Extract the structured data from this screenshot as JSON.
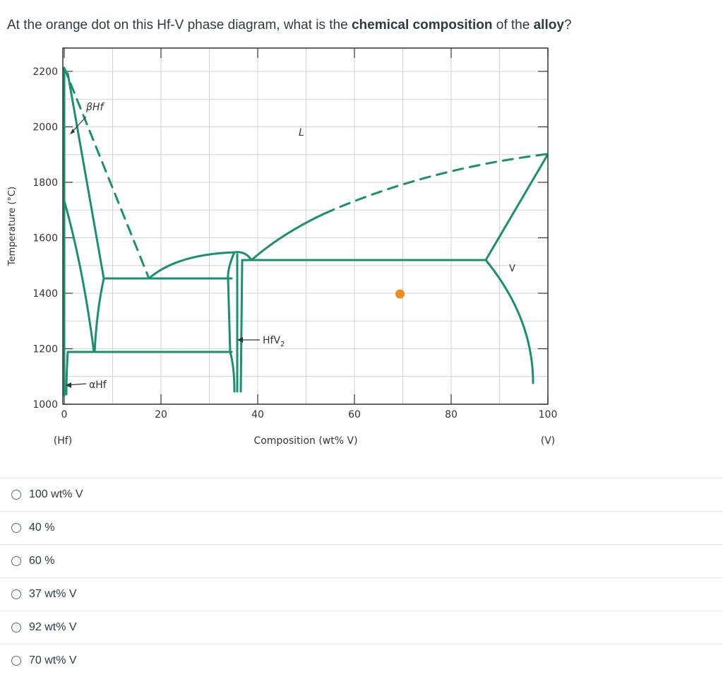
{
  "question": {
    "part1": "At the orange dot on this Hf-V phase diagram, what is the ",
    "bold1": "chemical composition",
    "part2": " of the ",
    "bold2": "alloy",
    "part3": "?"
  },
  "diagram": {
    "ylabel": "Temperature (°C)",
    "xlabel": "Composition (wt% V)",
    "x_end_left": "(Hf)",
    "x_end_right": "(V)",
    "x_ticks": [
      "0",
      "20",
      "40",
      "60",
      "80",
      "100"
    ],
    "y_ticks": [
      "1000",
      "1200",
      "1400",
      "1600",
      "1800",
      "2000",
      "2200"
    ],
    "xlim": [
      0,
      100
    ],
    "ylim": [
      1000,
      2250
    ],
    "labels": {
      "beta": "βHf",
      "liquid": "L",
      "compound": "HfV",
      "compound_sub": "2",
      "v_phase": "V",
      "alpha": "αHf"
    },
    "line_color": "#1a9070",
    "dot_color": "#f28c1e",
    "orange_dot": {
      "x": 70,
      "y": 1400
    }
  },
  "answers": [
    {
      "label": "100 wt% V"
    },
    {
      "label": "40 %"
    },
    {
      "label": "60 %"
    },
    {
      "label": "37 wt% V"
    },
    {
      "label": "92 wt% V"
    },
    {
      "label": "70 wt% V"
    }
  ]
}
